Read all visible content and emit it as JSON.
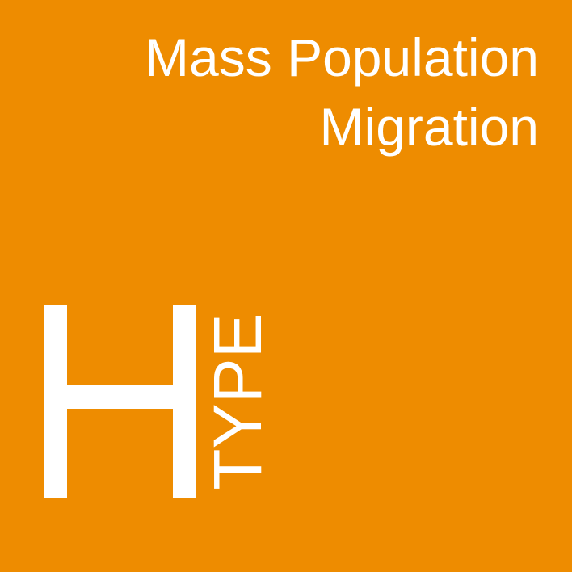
{
  "title": {
    "line1": "Mass Population",
    "line2": "Migration"
  },
  "logo": {
    "letter": "H",
    "word": "TYPE"
  },
  "colors": {
    "background": "#ee8c00",
    "foreground": "#ffffff"
  }
}
